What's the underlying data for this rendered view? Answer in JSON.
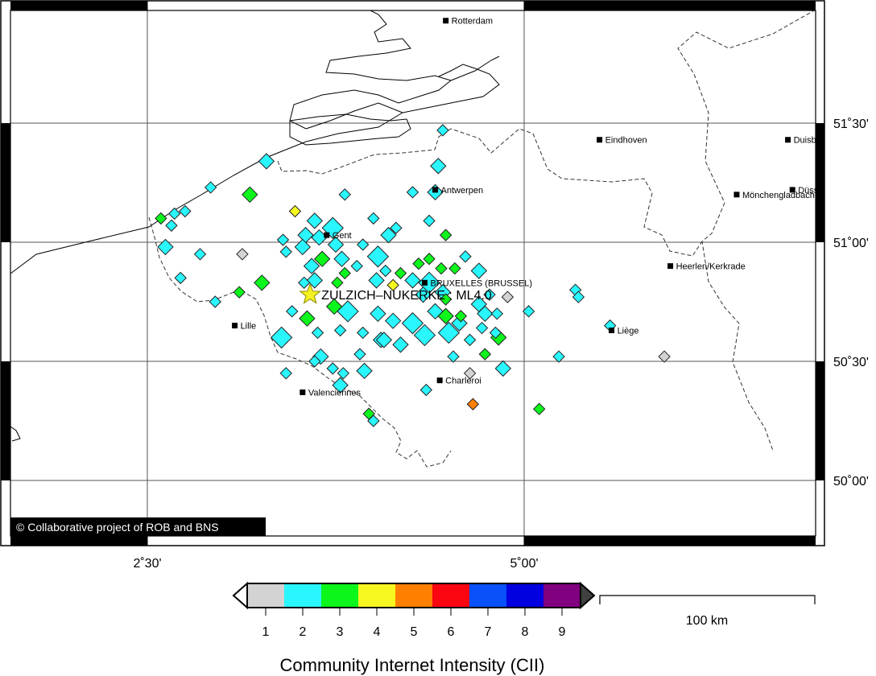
{
  "map": {
    "credit": "© Collaborative project of ROB and BNS",
    "lon_ticks": [
      {
        "value": 2.5,
        "label": "2˚30'"
      },
      {
        "value": 5.0,
        "label": "5˚00'"
      }
    ],
    "lat_ticks": [
      {
        "value": 51.5,
        "label": "51˚30'"
      },
      {
        "value": 51.0,
        "label": "51˚00'"
      },
      {
        "value": 50.5,
        "label": "50˚30'"
      },
      {
        "value": 50.0,
        "label": "50˚00'"
      }
    ],
    "epicenter": {
      "label": "ZULZICH–NUKERKE : ML4.0",
      "lon": 3.58,
      "lat": 50.78,
      "color": "#f5f020",
      "icon": "star-icon"
    },
    "cities": [
      {
        "name": "Rotterdam",
        "lon": 4.48,
        "lat": 51.93
      },
      {
        "name": "Eindhoven",
        "lon": 5.5,
        "lat": 51.43
      },
      {
        "name": "Antwerpen",
        "lon": 4.41,
        "lat": 51.22
      },
      {
        "name": "Gent",
        "lon": 3.69,
        "lat": 51.03
      },
      {
        "name": "BRUXELLES (BRUSSEL)",
        "lon": 4.34,
        "lat": 50.83
      },
      {
        "name": "Lille",
        "lon": 3.08,
        "lat": 50.65
      },
      {
        "name": "Valenciennes",
        "lon": 3.53,
        "lat": 50.37
      },
      {
        "name": "Charleroi",
        "lon": 4.44,
        "lat": 50.42
      },
      {
        "name": "Liège",
        "lon": 5.58,
        "lat": 50.63
      },
      {
        "name": "Heerlen/Kerkrade",
        "lon": 5.97,
        "lat": 50.9
      },
      {
        "name": "Mönchengladbach",
        "lon": 6.41,
        "lat": 51.2
      },
      {
        "name": "Duisburg",
        "lon": 6.75,
        "lat": 51.43
      },
      {
        "name": "Düsseldorf",
        "lon": 6.78,
        "lat": 51.22
      }
    ],
    "reports": [
      [
        3.29,
        51.34,
        "m",
        2
      ],
      [
        2.92,
        51.23,
        "s",
        2
      ],
      [
        3.18,
        51.2,
        "m",
        3
      ],
      [
        3.48,
        51.13,
        "s",
        4
      ],
      [
        3.81,
        51.2,
        "s",
        2
      ],
      [
        2.59,
        51.1,
        "s",
        3
      ],
      [
        2.68,
        51.12,
        "s",
        2
      ],
      [
        2.75,
        51.13,
        "s",
        2
      ],
      [
        2.66,
        51.07,
        "s",
        2
      ],
      [
        3.61,
        51.09,
        "m",
        2
      ],
      [
        4.0,
        51.1,
        "s",
        2
      ],
      [
        3.73,
        51.06,
        "l",
        2
      ],
      [
        3.55,
        51.03,
        "m",
        2
      ],
      [
        3.64,
        51.02,
        "m",
        2
      ],
      [
        3.4,
        51.01,
        "s",
        2
      ],
      [
        3.53,
        50.98,
        "m",
        2
      ],
      [
        3.75,
        50.99,
        "m",
        2
      ],
      [
        3.42,
        50.96,
        "s",
        2
      ],
      [
        2.62,
        50.98,
        "m",
        2
      ],
      [
        2.85,
        50.95,
        "s",
        2
      ],
      [
        3.13,
        50.95,
        "s",
        1
      ],
      [
        3.66,
        50.93,
        "m",
        3
      ],
      [
        3.79,
        50.93,
        "m",
        2
      ],
      [
        3.89,
        50.9,
        "s",
        2
      ],
      [
        3.59,
        50.9,
        "m",
        2
      ],
      [
        3.81,
        50.87,
        "s",
        3
      ],
      [
        3.76,
        50.83,
        "s",
        3
      ],
      [
        3.61,
        50.84,
        "m",
        2
      ],
      [
        3.54,
        50.83,
        "s",
        2
      ],
      [
        2.72,
        50.85,
        "s",
        2
      ],
      [
        3.26,
        50.83,
        "m",
        3
      ],
      [
        3.11,
        50.79,
        "s",
        3
      ],
      [
        2.95,
        50.75,
        "s",
        2
      ],
      [
        3.74,
        50.73,
        "m",
        3
      ],
      [
        3.83,
        50.71,
        "l",
        2
      ],
      [
        3.46,
        50.71,
        "s",
        2
      ],
      [
        3.56,
        50.68,
        "m",
        3
      ],
      [
        3.39,
        50.6,
        "l",
        2
      ],
      [
        3.63,
        50.62,
        "s",
        2
      ],
      [
        3.78,
        50.63,
        "s",
        2
      ],
      [
        3.93,
        50.62,
        "s",
        2
      ],
      [
        3.65,
        50.52,
        "m",
        2
      ],
      [
        3.61,
        50.5,
        "s",
        2
      ],
      [
        3.91,
        50.53,
        "s",
        2
      ],
      [
        3.73,
        50.47,
        "s",
        2
      ],
      [
        3.8,
        50.45,
        "s",
        2
      ],
      [
        3.94,
        50.46,
        "m",
        2
      ],
      [
        3.42,
        50.45,
        "s",
        2
      ],
      [
        3.78,
        50.4,
        "m",
        2
      ],
      [
        4.0,
        50.25,
        "s",
        2
      ],
      [
        3.97,
        50.28,
        "s",
        3
      ],
      [
        4.03,
        50.94,
        "l",
        2
      ],
      [
        4.02,
        50.84,
        "m",
        2
      ],
      [
        4.05,
        50.59,
        "m",
        2
      ],
      [
        4.46,
        51.47,
        "s",
        2
      ],
      [
        4.43,
        51.32,
        "m",
        2
      ],
      [
        4.26,
        51.21,
        "s",
        2
      ],
      [
        4.41,
        51.21,
        "m",
        2
      ],
      [
        4.37,
        51.09,
        "s",
        2
      ],
      [
        4.15,
        51.06,
        "s",
        2
      ],
      [
        4.1,
        51.03,
        "m",
        2
      ],
      [
        4.48,
        51.03,
        "s",
        3
      ],
      [
        3.93,
        50.99,
        "s",
        2
      ],
      [
        4.08,
        50.88,
        "s",
        2
      ],
      [
        4.18,
        50.87,
        "s",
        3
      ],
      [
        4.7,
        50.88,
        "m",
        2
      ],
      [
        4.61,
        50.94,
        "s",
        2
      ],
      [
        4.26,
        50.84,
        "m",
        2
      ],
      [
        4.37,
        50.83,
        "l",
        2
      ],
      [
        4.46,
        50.79,
        "m",
        2
      ],
      [
        4.33,
        50.78,
        "m",
        2
      ],
      [
        4.3,
        50.91,
        "s",
        3
      ],
      [
        4.37,
        50.93,
        "s",
        3
      ],
      [
        4.45,
        50.89,
        "s",
        3
      ],
      [
        4.54,
        50.89,
        "s",
        3
      ],
      [
        4.13,
        50.82,
        "s",
        4
      ],
      [
        4.48,
        50.76,
        "s",
        3
      ],
      [
        4.7,
        50.74,
        "m",
        2
      ],
      [
        4.77,
        50.78,
        "s",
        2
      ],
      [
        4.89,
        50.77,
        "s",
        1
      ],
      [
        5.34,
        50.8,
        "s",
        2
      ],
      [
        5.36,
        50.77,
        "s",
        2
      ],
      [
        5.03,
        50.71,
        "s",
        2
      ],
      [
        4.82,
        50.7,
        "s",
        2
      ],
      [
        4.74,
        50.7,
        "m",
        2
      ],
      [
        4.03,
        50.7,
        "m",
        2
      ],
      [
        4.41,
        50.71,
        "m",
        2
      ],
      [
        4.48,
        50.69,
        "m",
        3
      ],
      [
        4.58,
        50.69,
        "s",
        3
      ],
      [
        4.13,
        50.67,
        "m",
        2
      ],
      [
        4.26,
        50.66,
        "l",
        2
      ],
      [
        4.34,
        50.61,
        "l",
        2
      ],
      [
        4.5,
        50.62,
        "l",
        2
      ],
      [
        4.57,
        50.66,
        "m",
        2
      ],
      [
        4.72,
        50.64,
        "s",
        2
      ],
      [
        4.81,
        50.62,
        "s",
        2
      ],
      [
        4.83,
        50.6,
        "m",
        3
      ],
      [
        4.07,
        50.59,
        "m",
        2
      ],
      [
        4.18,
        50.57,
        "m",
        2
      ],
      [
        4.64,
        50.59,
        "s",
        2
      ],
      [
        4.53,
        50.52,
        "s",
        2
      ],
      [
        4.74,
        50.53,
        "s",
        3
      ],
      [
        5.23,
        50.52,
        "s",
        2
      ],
      [
        4.86,
        50.47,
        "m",
        2
      ],
      [
        4.64,
        50.45,
        "s",
        1
      ],
      [
        4.35,
        50.38,
        "s",
        2
      ],
      [
        4.66,
        50.32,
        "s",
        5
      ],
      [
        5.1,
        50.3,
        "s",
        3
      ],
      [
        5.57,
        50.65,
        "s",
        2
      ],
      [
        5.93,
        50.52,
        "s",
        1
      ]
    ]
  },
  "colorbar": {
    "title": "Community Internet Intensity (CII)",
    "levels": [
      {
        "value": "1",
        "color": "#d3d3d3"
      },
      {
        "value": "2",
        "color": "#2af6fd"
      },
      {
        "value": "3",
        "color": "#0cf61c"
      },
      {
        "value": "4",
        "color": "#f7f81f"
      },
      {
        "value": "5",
        "color": "#ff8000"
      },
      {
        "value": "6",
        "color": "#fb0511"
      },
      {
        "value": "7",
        "color": "#0951fb"
      },
      {
        "value": "8",
        "color": "#0000e0"
      },
      {
        "value": "9",
        "color": "#800080"
      }
    ],
    "below_color": "#ffffff",
    "above_color": "#404040"
  },
  "scalebar": {
    "label": "100 km"
  }
}
